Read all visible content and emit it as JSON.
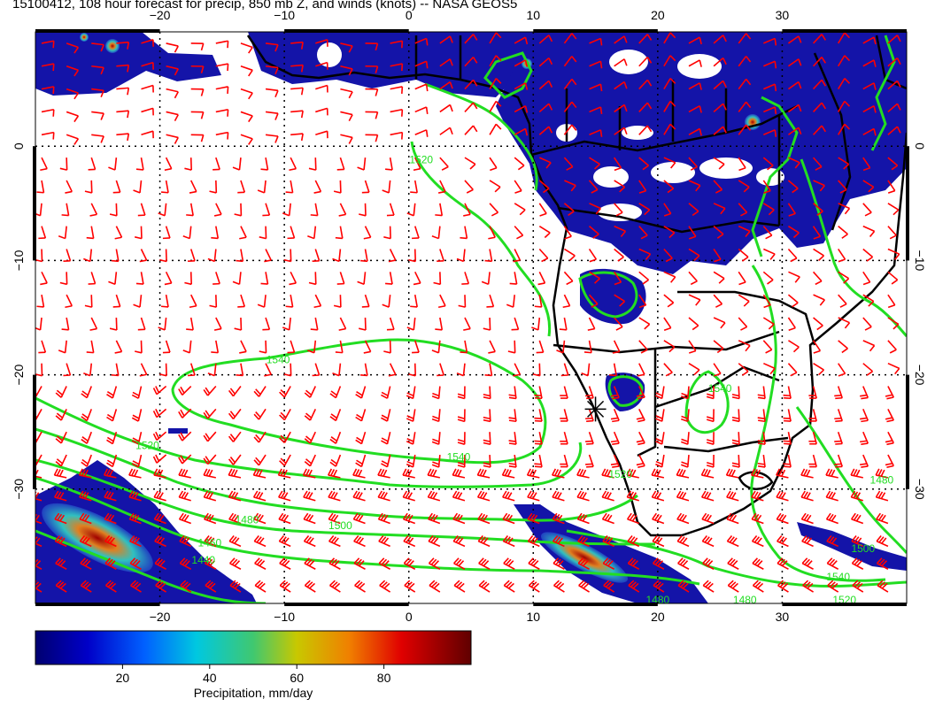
{
  "title": "15100412, 108 hour forecast for precip, 850 mb Z, and winds (knots) -- NASA GEOS5",
  "map": {
    "lon_range": [
      -30,
      40
    ],
    "lat_range": [
      -40,
      10
    ],
    "lon_ticks": [
      -20,
      -10,
      0,
      10,
      20,
      30
    ],
    "lat_ticks": [
      0,
      -10,
      -20,
      -30
    ],
    "lon_tick_labels": [
      "−20",
      "−10",
      "0",
      "10",
      "20",
      "30"
    ],
    "lat_tick_labels": [
      "0",
      "−10",
      "−20",
      "−30"
    ],
    "gridlines": "dotted",
    "station_marker_lon_lat": [
      15,
      -23
    ],
    "colors": {
      "precip_low": "#1010a0",
      "precip_mid": "#20c0e0",
      "precip_high": "#c00000",
      "wind_barbs": "#ff0000",
      "height_contours": "#22dd22",
      "coastlines": "#000000"
    },
    "height_contour_labels": [
      {
        "text": "1520",
        "lon": 1,
        "lat": -1.5
      },
      {
        "text": "1540",
        "lon": -10.5,
        "lat": -19
      },
      {
        "text": "1520",
        "lon": -21,
        "lat": -26.5
      },
      {
        "text": "1540",
        "lon": 4,
        "lat": -27.5
      },
      {
        "text": "1540",
        "lon": 25,
        "lat": -21.5
      },
      {
        "text": "1500",
        "lon": -5.5,
        "lat": -33.5
      },
      {
        "text": "1480",
        "lon": -13,
        "lat": -33
      },
      {
        "text": "1460",
        "lon": -16,
        "lat": -35
      },
      {
        "text": "1440",
        "lon": -16.5,
        "lat": -36.5
      },
      {
        "text": "1520",
        "lon": 17,
        "lat": -29
      },
      {
        "text": "1480",
        "lon": 38,
        "lat": -29.5
      },
      {
        "text": "1500",
        "lon": 36.5,
        "lat": -35.5
      },
      {
        "text": "1540",
        "lon": 34.5,
        "lat": -38
      },
      {
        "text": "1520",
        "lon": 35,
        "lat": -40
      },
      {
        "text": "1480",
        "lon": 20,
        "lat": -40
      },
      {
        "text": "1480",
        "lon": 27,
        "lat": -40
      }
    ]
  },
  "colorbar": {
    "range": [
      0,
      100
    ],
    "ticks": [
      20,
      40,
      60,
      80
    ],
    "label": "Precipitation, mm/day"
  }
}
